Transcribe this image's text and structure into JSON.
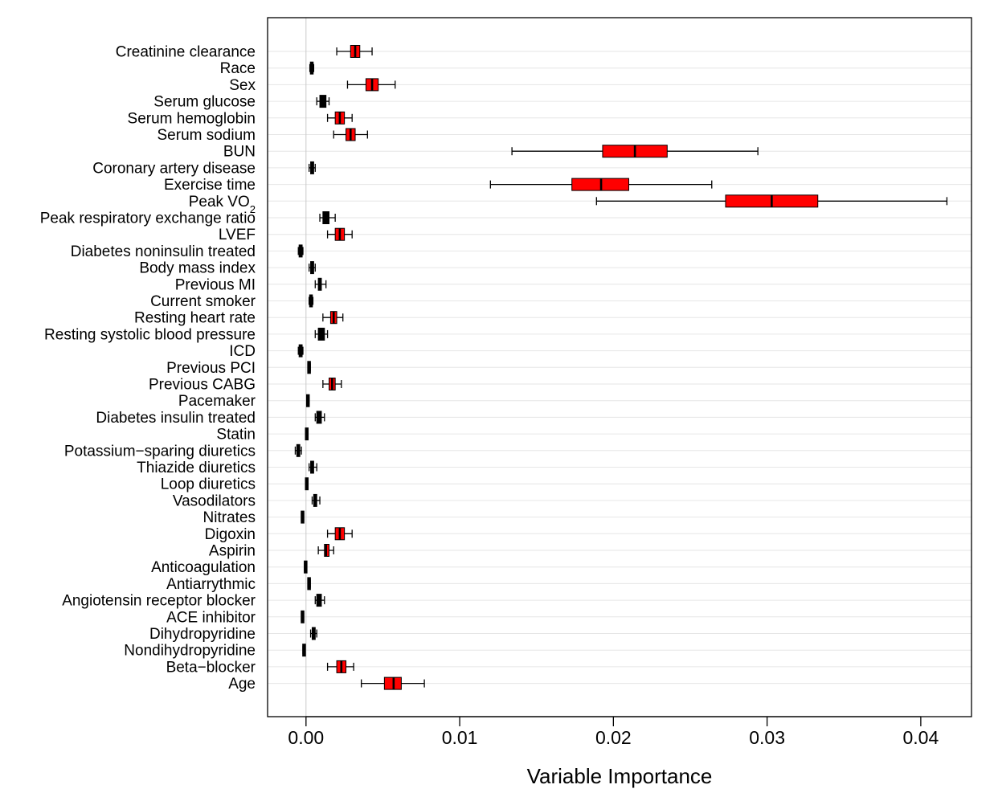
{
  "chart_data": {
    "type": "boxplot",
    "xlabel": "Variable Importance",
    "xlim": [
      -0.0025,
      0.0433
    ],
    "x_ticks": [
      {
        "value": 0.0,
        "label": "0.00"
      },
      {
        "value": 0.01,
        "label": "0.01"
      },
      {
        "value": 0.02,
        "label": "0.02"
      },
      {
        "value": 0.03,
        "label": "0.03"
      },
      {
        "value": 0.04,
        "label": "0.04"
      }
    ],
    "reference_line": 0,
    "grid": "horizontal",
    "colors": {
      "significant_box": "#ff0000",
      "non_significant_box": "#000000",
      "reference_line": "#c8c8c8",
      "grid": "#e6e6e6"
    },
    "variables": [
      {
        "label": "Creatinine clearance",
        "sub": "",
        "min": 0.002,
        "q1": 0.0029,
        "median": 0.0032,
        "q3": 0.0035,
        "max": 0.0043,
        "significant": true
      },
      {
        "label": "Race",
        "sub": "",
        "min": 0.00025,
        "q1": 0.0003,
        "median": 0.00038,
        "q3": 0.00045,
        "max": 0.0005,
        "significant": false
      },
      {
        "label": "Sex",
        "sub": "",
        "min": 0.0027,
        "q1": 0.0039,
        "median": 0.0043,
        "q3": 0.0047,
        "max": 0.0058,
        "significant": true
      },
      {
        "label": "Serum glucose",
        "sub": "",
        "min": 0.0007,
        "q1": 0.0009,
        "median": 0.0011,
        "q3": 0.0013,
        "max": 0.0015,
        "significant": false
      },
      {
        "label": "Serum hemoglobin",
        "sub": "",
        "min": 0.0014,
        "q1": 0.0019,
        "median": 0.0022,
        "q3": 0.0025,
        "max": 0.003,
        "significant": true
      },
      {
        "label": "Serum sodium",
        "sub": "",
        "min": 0.0018,
        "q1": 0.0026,
        "median": 0.0029,
        "q3": 0.0032,
        "max": 0.004,
        "significant": true
      },
      {
        "label": "BUN",
        "sub": "",
        "min": 0.0134,
        "q1": 0.0193,
        "median": 0.0214,
        "q3": 0.0235,
        "max": 0.0294,
        "significant": true
      },
      {
        "label": "Coronary artery disease",
        "sub": "",
        "min": 0.0002,
        "q1": 0.0003,
        "median": 0.0004,
        "q3": 0.0005,
        "max": 0.0006,
        "significant": false
      },
      {
        "label": "Exercise time",
        "sub": "",
        "min": 0.012,
        "q1": 0.0173,
        "median": 0.0192,
        "q3": 0.021,
        "max": 0.0264,
        "significant": true
      },
      {
        "label": "Peak VO",
        "sub": "2",
        "min": 0.0189,
        "q1": 0.0273,
        "median": 0.0303,
        "q3": 0.0333,
        "max": 0.0417,
        "significant": true
      },
      {
        "label": "Peak respiratory exchange ratio",
        "sub": "",
        "min": 0.0009,
        "q1": 0.0011,
        "median": 0.0013,
        "q3": 0.0015,
        "max": 0.0019,
        "significant": false
      },
      {
        "label": "LVEF",
        "sub": "",
        "min": 0.0014,
        "q1": 0.0019,
        "median": 0.0022,
        "q3": 0.0025,
        "max": 0.003,
        "significant": true
      },
      {
        "label": "Diabetes noninsulin treated",
        "sub": "",
        "min": -0.0005,
        "q1": -0.00045,
        "median": -0.00035,
        "q3": -0.00025,
        "max": -0.0002,
        "significant": false
      },
      {
        "label": "Body mass index",
        "sub": "",
        "min": 0.0002,
        "q1": 0.0003,
        "median": 0.0004,
        "q3": 0.0005,
        "max": 0.0006,
        "significant": false
      },
      {
        "label": "Previous MI",
        "sub": "",
        "min": 0.0006,
        "q1": 0.0008,
        "median": 0.0009,
        "q3": 0.001,
        "max": 0.0013,
        "significant": false
      },
      {
        "label": "Current smoker",
        "sub": "",
        "min": 0.0002,
        "q1": 0.00025,
        "median": 0.00032,
        "q3": 0.0004,
        "max": 0.00045,
        "significant": false
      },
      {
        "label": "Resting heart rate",
        "sub": "",
        "min": 0.0011,
        "q1": 0.0016,
        "median": 0.0018,
        "q3": 0.002,
        "max": 0.0024,
        "significant": true
      },
      {
        "label": "Resting systolic blood pressure",
        "sub": "",
        "min": 0.0006,
        "q1": 0.0008,
        "median": 0.001,
        "q3": 0.0012,
        "max": 0.0014,
        "significant": false
      },
      {
        "label": "ICD",
        "sub": "",
        "min": -0.0005,
        "q1": -0.00045,
        "median": -0.00035,
        "q3": -0.00025,
        "max": -0.0002,
        "significant": false
      },
      {
        "label": "Previous PCI",
        "sub": "",
        "min": 0.00012,
        "q1": 0.00012,
        "median": 0.0002,
        "q3": 0.00028,
        "max": 0.00028,
        "significant": false
      },
      {
        "label": "Previous CABG",
        "sub": "",
        "min": 0.0011,
        "q1": 0.0015,
        "median": 0.0017,
        "q3": 0.0019,
        "max": 0.0023,
        "significant": true
      },
      {
        "label": "Pacemaker",
        "sub": "",
        "min": 5e-05,
        "q1": 5e-05,
        "median": 0.00012,
        "q3": 0.0002,
        "max": 0.0002,
        "significant": false
      },
      {
        "label": "Diabetes insulin treated",
        "sub": "",
        "min": 0.0006,
        "q1": 0.0007,
        "median": 0.0009,
        "q3": 0.001,
        "max": 0.0012,
        "significant": false
      },
      {
        "label": "Statin",
        "sub": "",
        "min": 0.0,
        "q1": 0.0,
        "median": 5e-05,
        "q3": 0.0001,
        "max": 0.0001,
        "significant": false
      },
      {
        "label": "Potassium−sparing diuretics",
        "sub": "",
        "min": -0.0007,
        "q1": -0.0006,
        "median": -0.0005,
        "q3": -0.0004,
        "max": -0.0003,
        "significant": false
      },
      {
        "label": "Thiazide diuretics",
        "sub": "",
        "min": 0.0002,
        "q1": 0.0003,
        "median": 0.0004,
        "q3": 0.0005,
        "max": 0.0007,
        "significant": false
      },
      {
        "label": "Loop diuretics",
        "sub": "",
        "min": 0.0,
        "q1": 0.0,
        "median": 5e-05,
        "q3": 0.0001,
        "max": 0.0001,
        "significant": false
      },
      {
        "label": "Vasodilators",
        "sub": "",
        "min": 0.0004,
        "q1": 0.0005,
        "median": 0.0006,
        "q3": 0.0007,
        "max": 0.0009,
        "significant": false
      },
      {
        "label": "Nitrates",
        "sub": "",
        "min": -0.0003,
        "q1": -0.0003,
        "median": -0.00022,
        "q3": -0.00015,
        "max": -0.00015,
        "significant": false
      },
      {
        "label": "Digoxin",
        "sub": "",
        "min": 0.0014,
        "q1": 0.0019,
        "median": 0.0022,
        "q3": 0.0025,
        "max": 0.003,
        "significant": true
      },
      {
        "label": "Aspirin",
        "sub": "",
        "min": 0.0008,
        "q1": 0.0012,
        "median": 0.0013,
        "q3": 0.0015,
        "max": 0.0018,
        "significant": true
      },
      {
        "label": "Anticoagulation",
        "sub": "",
        "min": -0.0001,
        "q1": -0.0001,
        "median": -2e-05,
        "q3": 5e-05,
        "max": 5e-05,
        "significant": false
      },
      {
        "label": "Antiarrythmic",
        "sub": "",
        "min": 0.00012,
        "q1": 0.00012,
        "median": 0.0002,
        "q3": 0.00028,
        "max": 0.00028,
        "significant": false
      },
      {
        "label": "Angiotensin receptor blocker",
        "sub": "",
        "min": 0.0006,
        "q1": 0.0007,
        "median": 0.0009,
        "q3": 0.001,
        "max": 0.0012,
        "significant": false
      },
      {
        "label": "ACE inhibitor",
        "sub": "",
        "min": -0.0003,
        "q1": -0.0003,
        "median": -0.00022,
        "q3": -0.00015,
        "max": -0.00015,
        "significant": false
      },
      {
        "label": "Dihydropyridine",
        "sub": "",
        "min": 0.0003,
        "q1": 0.0004,
        "median": 0.0005,
        "q3": 0.0006,
        "max": 0.0007,
        "significant": false
      },
      {
        "label": "Nondihydropyridine",
        "sub": "",
        "min": -0.0002,
        "q1": -0.0002,
        "median": -0.00012,
        "q3": -5e-05,
        "max": -5e-05,
        "significant": false
      },
      {
        "label": "Beta−blocker",
        "sub": "",
        "min": 0.0014,
        "q1": 0.002,
        "median": 0.0023,
        "q3": 0.0026,
        "max": 0.0031,
        "significant": true
      },
      {
        "label": "Age",
        "sub": "",
        "min": 0.0036,
        "q1": 0.0051,
        "median": 0.0057,
        "q3": 0.0062,
        "max": 0.0077,
        "significant": true
      }
    ]
  }
}
